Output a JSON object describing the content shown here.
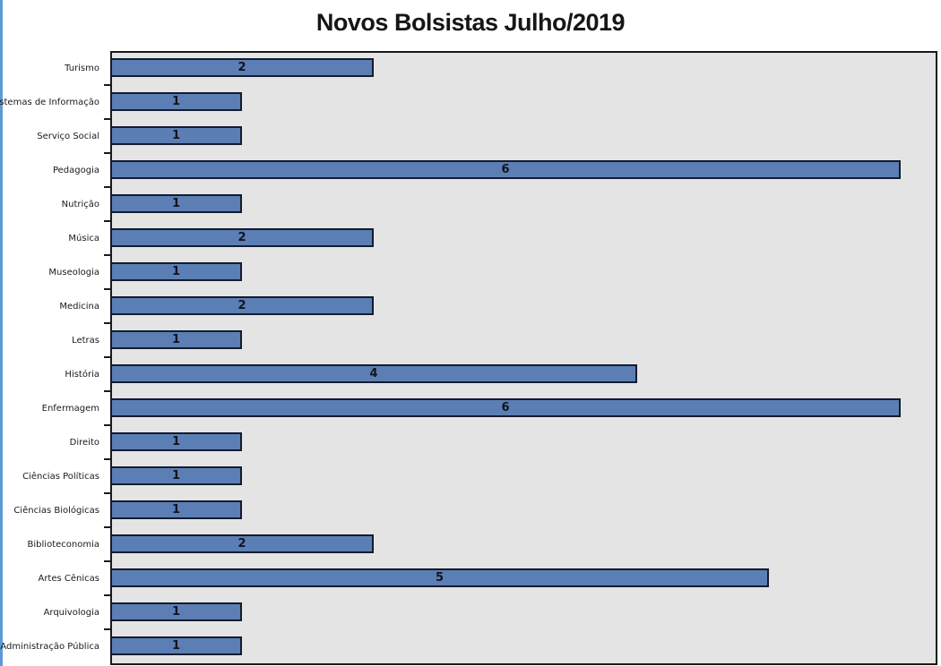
{
  "page": {
    "background_color": "#ffffff",
    "left_stripe_color": "#5C9BD5"
  },
  "chart_data": {
    "type": "bar",
    "orientation": "horizontal",
    "title": "Novos Bolsistas Julho/2019",
    "categories": [
      "Turismo",
      "Sistemas de Informação",
      "Serviço Social",
      "Pedagogia",
      "Nutrição",
      "Música",
      "Museologia",
      "Medicina",
      "Letras",
      "História",
      "Enfermagem",
      "Direito",
      "Ciências Políticas",
      "Ciências Biológicas",
      "Biblioteconomia",
      "Artes Cênicas",
      "Arquivologia",
      "Administração Pública"
    ],
    "values": [
      2,
      1,
      1,
      6,
      1,
      2,
      1,
      2,
      1,
      4,
      6,
      1,
      1,
      1,
      2,
      5,
      1,
      1
    ],
    "xlabel": "",
    "ylabel": "",
    "xlim": [
      0,
      6.27
    ],
    "grid": false,
    "legend": false,
    "data_labels_position": "center",
    "bar_color": "#5B7FB4",
    "bar_border_color": "#141B2E",
    "plot_bg_color": "#E4E4E4",
    "plot_border_color": "#1A1A1A",
    "axis_tick_color": "#1A1A1A",
    "label_color": "#1A1A1A",
    "value_label_color": "#13131F",
    "title_color": "#161616"
  }
}
